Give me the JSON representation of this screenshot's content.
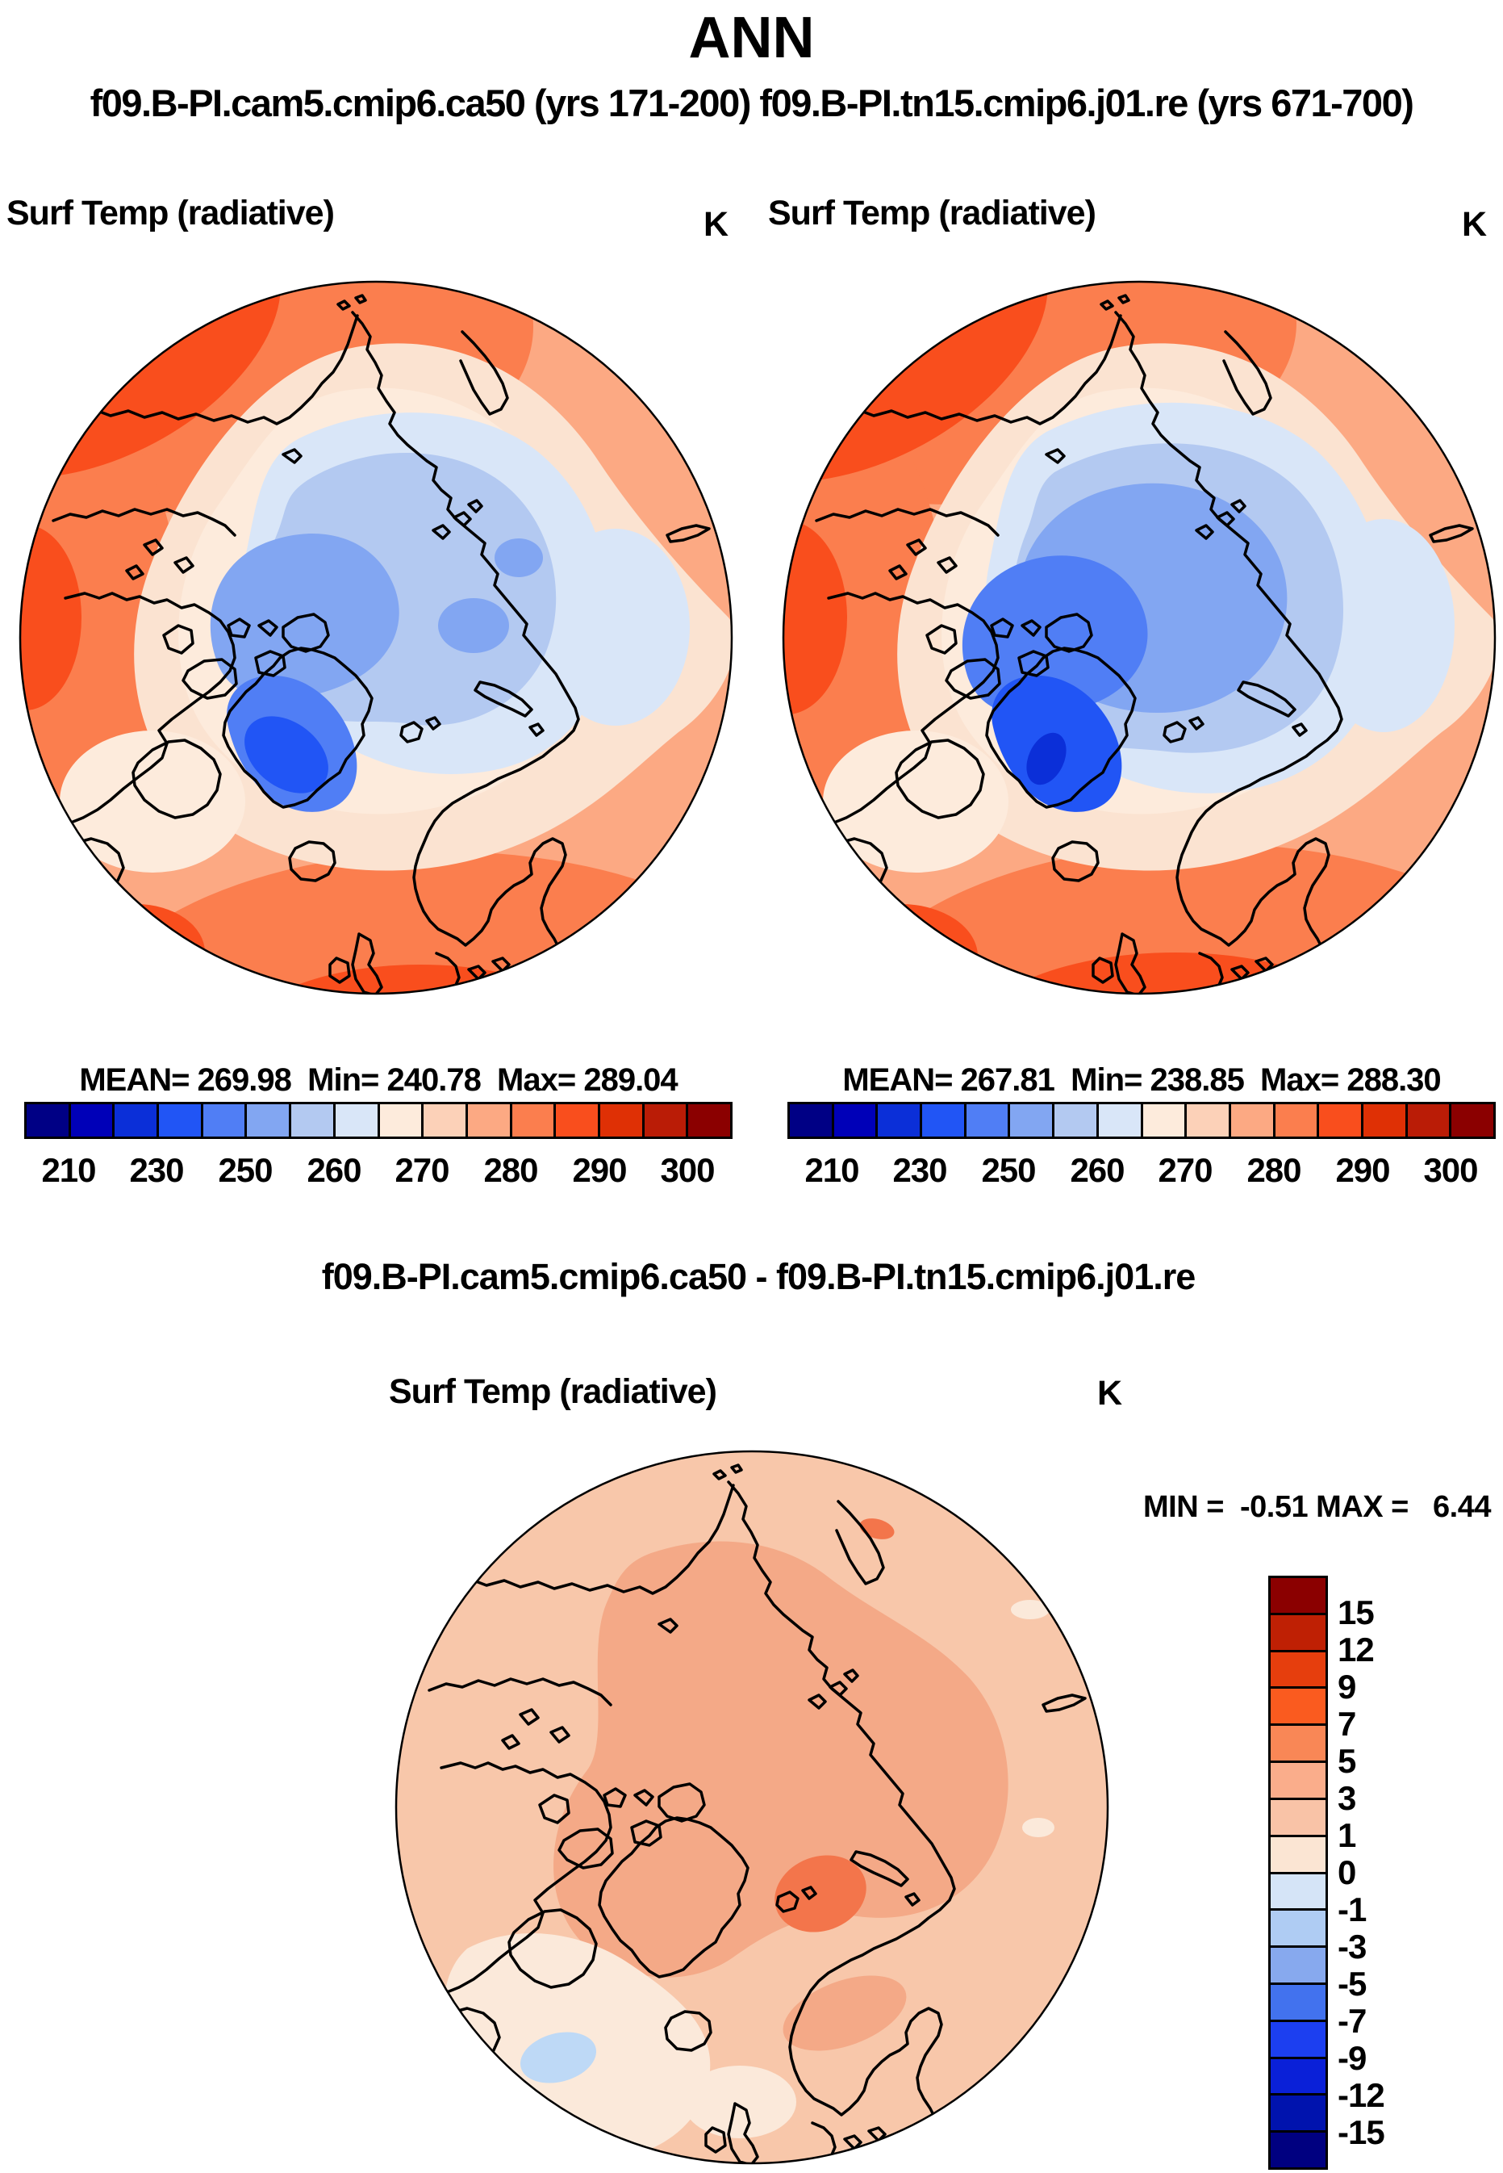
{
  "header": {
    "title": "ANN",
    "subtitle": "f09.B-PI.cam5.cmip6.ca50 (yrs 171-200) f09.B-PI.tn15.cmip6.j01.re (yrs 671-700)"
  },
  "diff_header": {
    "title": "f09.B-PI.cam5.cmip6.ca50 - f09.B-PI.tn15.cmip6.j01.re"
  },
  "chart_data": [
    {
      "type": "heatmap",
      "panel": "case1",
      "projection": "north-polar-stereographic",
      "title": "Surf Temp (radiative)",
      "units": "K",
      "case_name": "f09.B-PI.cam5.cmip6.ca50",
      "period": "yrs 171-200",
      "stats_label": "MEAN= 269.98  Min= 240.78  Max= 289.04",
      "mean": 269.98,
      "min": 240.78,
      "max": 289.04,
      "colorbar": {
        "orientation": "horizontal",
        "levels": [
          210,
          220,
          230,
          240,
          250,
          255,
          260,
          265,
          270,
          275,
          280,
          285,
          290,
          295,
          300
        ],
        "tick_labels": [
          "210",
          "230",
          "250",
          "260",
          "270",
          "280",
          "290",
          "300"
        ],
        "colors": [
          "#000085",
          "#0000B8",
          "#0B2FD8",
          "#2155F5",
          "#507EF5",
          "#82A6F2",
          "#B3C9F1",
          "#D9E6F8",
          "#FDEBDC",
          "#FCD1B8",
          "#FCA983",
          "#FB7E4E",
          "#F94E1D",
          "#DF3005",
          "#BA1C06",
          "#8B0000"
        ]
      }
    },
    {
      "type": "heatmap",
      "panel": "case2",
      "projection": "north-polar-stereographic",
      "title": "Surf Temp (radiative)",
      "units": "K",
      "case_name": "f09.B-PI.tn15.cmip6.j01.re",
      "period": "yrs 671-700",
      "stats_label": "MEAN= 267.81  Min= 238.85  Max= 288.30",
      "mean": 267.81,
      "min": 238.85,
      "max": 288.3,
      "colorbar": {
        "orientation": "horizontal",
        "levels": [
          210,
          220,
          230,
          240,
          250,
          255,
          260,
          265,
          270,
          275,
          280,
          285,
          290,
          295,
          300
        ],
        "tick_labels": [
          "210",
          "230",
          "250",
          "260",
          "270",
          "280",
          "290",
          "300"
        ],
        "colors": [
          "#000085",
          "#0000B8",
          "#0B2FD8",
          "#2155F5",
          "#507EF5",
          "#82A6F2",
          "#B3C9F1",
          "#D9E6F8",
          "#FDEBDC",
          "#FCD1B8",
          "#FCA983",
          "#FB7E4E",
          "#F94E1D",
          "#DF3005",
          "#BA1C06",
          "#8B0000"
        ]
      }
    },
    {
      "type": "heatmap",
      "panel": "difference",
      "projection": "north-polar-stereographic",
      "title": "Surf Temp (radiative)",
      "units": "K",
      "expression": "f09.B-PI.cam5.cmip6.ca50 - f09.B-PI.tn15.cmip6.j01.re",
      "stats_label": "MIN =  -0.51 MAX =   6.44",
      "min": -0.51,
      "max": 6.44,
      "colorbar": {
        "orientation": "vertical",
        "levels": [
          15,
          12,
          9,
          7,
          5,
          3,
          1,
          0,
          -1,
          -3,
          -5,
          -7,
          -9,
          -12,
          -15
        ],
        "tick_labels": [
          "15",
          "12",
          "9",
          "7",
          "5",
          "3",
          "1",
          "0",
          "-1",
          "-3",
          "-5",
          "-7",
          "-9",
          "-12",
          "-15"
        ],
        "colors": [
          "#8B0000",
          "#BF2004",
          "#E63E0D",
          "#FA5B1F",
          "#F98756",
          "#FAAD8B",
          "#F9C3A7",
          "#FBE5D3",
          "#D5E4F7",
          "#AFCCF3",
          "#87A9EE",
          "#4272EE",
          "#1C3FF0",
          "#0A20D8",
          "#0013AE",
          "#000080"
        ]
      }
    }
  ]
}
